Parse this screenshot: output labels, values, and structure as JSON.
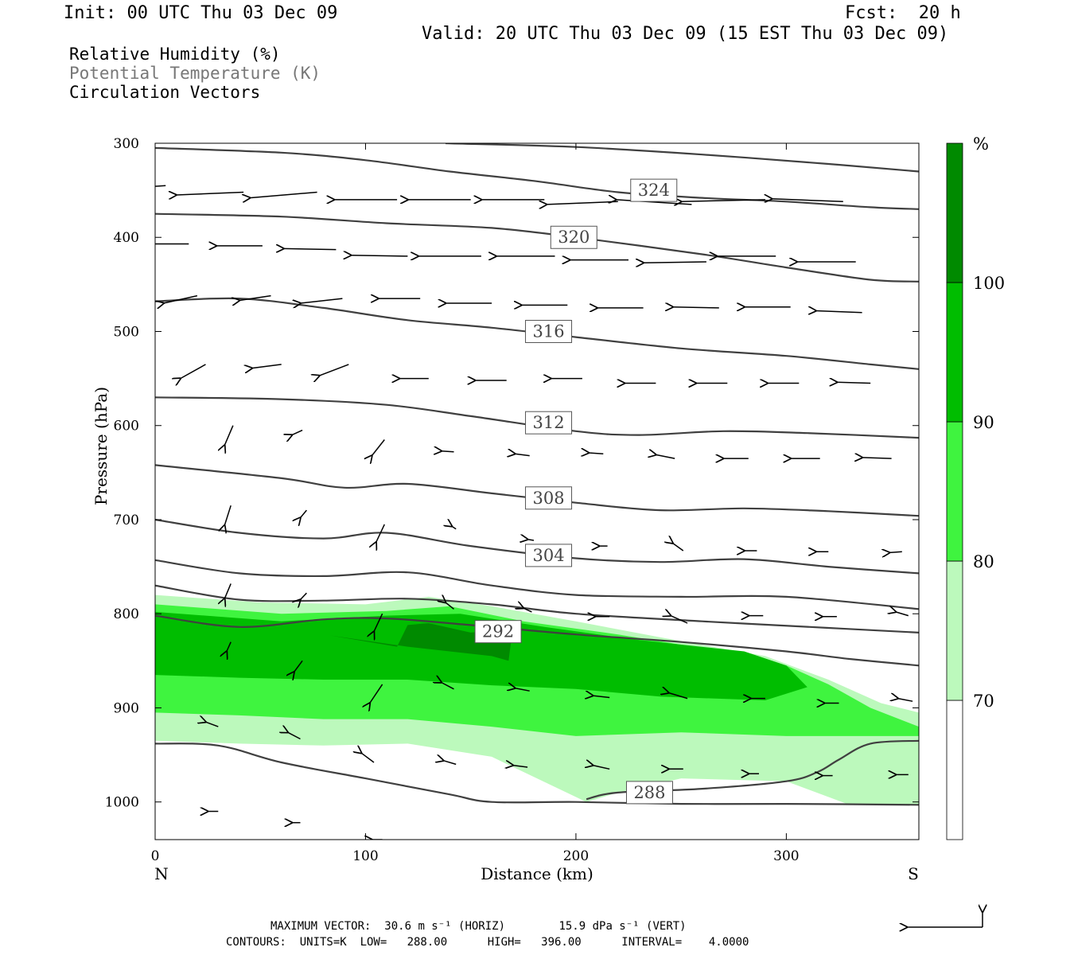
{
  "header": {
    "init": "Init: 00 UTC Thu 03 Dec 09",
    "fcst": "Fcst:  20 h",
    "valid": "Valid: 20 UTC Thu 03 Dec 09 (15 EST Thu 03 Dec 09)"
  },
  "legend_fields": [
    "Relative Humidity (%)",
    "Potential Temperature (K)",
    "Circulation Vectors"
  ],
  "footer": {
    "max_vector_label": "MAXIMUM VECTOR:",
    "max_vector_horiz": "30.6 m s⁻¹ (HORIZ)",
    "max_vector_vert": "15.9 dPa s⁻¹ (VERT)",
    "contours": "CONTOURS:  UNITS=K  LOW=   288.00      HIGH=   396.00      INTERVAL=    4.0000"
  },
  "colors": {
    "rh_70_80": "#bcf9bc",
    "rh_80_90": "#3ff43f",
    "rh_90_100": "#00bd00",
    "rh_100": "#008a00",
    "theta_line": "#404040",
    "vector": "#000000"
  },
  "chart_data": {
    "type": "cross-section",
    "xlabel": "Distance (km)",
    "ylabel": "Pressure (hPa)",
    "x_range": [
      0,
      363
    ],
    "y_range": [
      300,
      1040
    ],
    "y_reversed": true,
    "x_ticks": [
      0,
      100,
      200,
      300
    ],
    "y_ticks": [
      300,
      400,
      500,
      600,
      700,
      800,
      900,
      1000
    ],
    "end_labels": {
      "left": "N",
      "right": "S"
    },
    "colorbar": {
      "unit": "%",
      "levels": [
        70,
        80,
        90,
        100
      ],
      "colors": [
        "#ffffff",
        "#bcf9bc",
        "#3ff43f",
        "#00bd00",
        "#008a00"
      ]
    },
    "rh_filled_regions": [
      {
        "min": 70,
        "points": [
          [
            0,
            780
          ],
          [
            50,
            788
          ],
          [
            100,
            790
          ],
          [
            130,
            782
          ],
          [
            160,
            792
          ],
          [
            200,
            808
          ],
          [
            240,
            825
          ],
          [
            290,
            845
          ],
          [
            320,
            870
          ],
          [
            345,
            895
          ],
          [
            363,
            905
          ],
          [
            363,
            1003
          ],
          [
            330,
            1003
          ],
          [
            300,
            978
          ],
          [
            250,
            975
          ],
          [
            220,
            990
          ],
          [
            205,
            1000
          ],
          [
            160,
            952
          ],
          [
            120,
            938
          ],
          [
            80,
            940
          ],
          [
            40,
            938
          ],
          [
            0,
            935
          ]
        ]
      },
      {
        "min": 80,
        "points": [
          [
            0,
            790
          ],
          [
            60,
            800
          ],
          [
            110,
            797
          ],
          [
            140,
            792
          ],
          [
            175,
            808
          ],
          [
            220,
            822
          ],
          [
            270,
            840
          ],
          [
            300,
            855
          ],
          [
            320,
            875
          ],
          [
            340,
            900
          ],
          [
            363,
            920
          ],
          [
            363,
            930
          ],
          [
            300,
            930
          ],
          [
            250,
            926
          ],
          [
            200,
            930
          ],
          [
            160,
            920
          ],
          [
            120,
            912
          ],
          [
            80,
            912
          ],
          [
            40,
            908
          ],
          [
            0,
            905
          ]
        ]
      },
      {
        "min": 90,
        "points": [
          [
            0,
            798
          ],
          [
            60,
            808
          ],
          [
            110,
            802
          ],
          [
            145,
            800
          ],
          [
            185,
            814
          ],
          [
            230,
            828
          ],
          [
            280,
            840
          ],
          [
            300,
            855
          ],
          [
            310,
            878
          ],
          [
            290,
            892
          ],
          [
            240,
            888
          ],
          [
            200,
            880
          ],
          [
            160,
            876
          ],
          [
            120,
            870
          ],
          [
            80,
            870
          ],
          [
            40,
            868
          ],
          [
            0,
            865
          ]
        ]
      },
      {
        "min": 100,
        "points": [
          [
            83,
            823
          ],
          [
            120,
            835
          ],
          [
            160,
            845
          ],
          [
            168,
            850
          ],
          [
            170,
            815
          ],
          [
            150,
            820
          ],
          [
            130,
            810
          ],
          [
            120,
            812
          ],
          [
            115,
            835
          ]
        ]
      }
    ],
    "theta_contours": [
      {
        "level": 324,
        "label_at": [
          237,
          350
        ],
        "points": [
          [
            0,
            305
          ],
          [
            60,
            310
          ],
          [
            100,
            318
          ],
          [
            140,
            330
          ],
          [
            180,
            340
          ],
          [
            220,
            352
          ],
          [
            260,
            358
          ],
          [
            300,
            362
          ],
          [
            340,
            368
          ],
          [
            363,
            370
          ]
        ]
      },
      {
        "level": null,
        "points": [
          [
            138,
            300
          ],
          [
            200,
            304
          ],
          [
            260,
            312
          ],
          [
            320,
            322
          ],
          [
            363,
            330
          ]
        ]
      },
      {
        "level": 320,
        "label_at": [
          199,
          400
        ],
        "points": [
          [
            0,
            375
          ],
          [
            60,
            378
          ],
          [
            110,
            385
          ],
          [
            160,
            390
          ],
          [
            200,
            400
          ],
          [
            260,
            418
          ],
          [
            300,
            432
          ],
          [
            340,
            445
          ],
          [
            363,
            447
          ]
        ]
      },
      {
        "level": 316,
        "label_at": [
          187,
          500
        ],
        "points": [
          [
            0,
            468
          ],
          [
            40,
            465
          ],
          [
            80,
            475
          ],
          [
            120,
            488
          ],
          [
            160,
            496
          ],
          [
            200,
            506
          ],
          [
            250,
            518
          ],
          [
            300,
            526
          ],
          [
            340,
            535
          ],
          [
            363,
            540
          ]
        ]
      },
      {
        "level": 312,
        "label_at": [
          187,
          597
        ],
        "points": [
          [
            0,
            570
          ],
          [
            60,
            572
          ],
          [
            110,
            578
          ],
          [
            150,
            590
          ],
          [
            200,
            606
          ],
          [
            230,
            610
          ],
          [
            270,
            606
          ],
          [
            310,
            608
          ],
          [
            363,
            613
          ]
        ]
      },
      {
        "level": 308,
        "label_at": [
          187,
          677
        ],
        "points": [
          [
            0,
            642
          ],
          [
            60,
            656
          ],
          [
            90,
            666
          ],
          [
            120,
            662
          ],
          [
            160,
            672
          ],
          [
            200,
            682
          ],
          [
            240,
            690
          ],
          [
            280,
            688
          ],
          [
            320,
            691
          ],
          [
            363,
            696
          ]
        ]
      },
      {
        "level": 304,
        "label_at": [
          187,
          738
        ],
        "points": [
          [
            0,
            700
          ],
          [
            40,
            714
          ],
          [
            80,
            720
          ],
          [
            110,
            714
          ],
          [
            150,
            728
          ],
          [
            200,
            741
          ],
          [
            240,
            745
          ],
          [
            280,
            742
          ],
          [
            320,
            750
          ],
          [
            363,
            757
          ]
        ]
      },
      {
        "level": null,
        "points": [
          [
            0,
            743
          ],
          [
            40,
            757
          ],
          [
            80,
            760
          ],
          [
            120,
            756
          ],
          [
            160,
            770
          ],
          [
            200,
            780
          ],
          [
            250,
            782
          ],
          [
            300,
            782
          ],
          [
            363,
            795
          ]
        ]
      },
      {
        "level": null,
        "points": [
          [
            0,
            770
          ],
          [
            40,
            785
          ],
          [
            80,
            786
          ],
          [
            120,
            784
          ],
          [
            160,
            790
          ],
          [
            200,
            800
          ],
          [
            260,
            808
          ],
          [
            320,
            815
          ],
          [
            363,
            820
          ]
        ]
      },
      {
        "level": 292,
        "label_at": [
          163,
          819
        ],
        "points": [
          [
            0,
            802
          ],
          [
            40,
            814
          ],
          [
            80,
            806
          ],
          [
            110,
            805
          ],
          [
            150,
            812
          ],
          [
            200,
            822
          ],
          [
            250,
            830
          ],
          [
            300,
            840
          ],
          [
            330,
            848
          ],
          [
            363,
            855
          ]
        ]
      },
      {
        "level": 288,
        "label_at": [
          235,
          990
        ],
        "points": [
          [
            0,
            938
          ],
          [
            30,
            940
          ],
          [
            60,
            958
          ],
          [
            100,
            975
          ],
          [
            140,
            992
          ],
          [
            160,
            1000
          ],
          [
            200,
            1000
          ],
          [
            250,
            1002
          ],
          [
            300,
            1002
          ],
          [
            363,
            1003
          ]
        ]
      },
      {
        "level": 288,
        "points": [
          [
            205,
            997
          ],
          [
            220,
            990
          ],
          [
            260,
            986
          ],
          [
            300,
            978
          ],
          [
            315,
            968
          ],
          [
            325,
            955
          ],
          [
            340,
            938
          ],
          [
            363,
            935
          ]
        ]
      }
    ],
    "circulation_vectors": [
      [
        5,
        345,
        34,
        5
      ],
      [
        42,
        352,
        32,
        3
      ],
      [
        77,
        352,
        32,
        6
      ],
      [
        115,
        360,
        30,
        0
      ],
      [
        150,
        360,
        30,
        0
      ],
      [
        185,
        360,
        30,
        0
      ],
      [
        220,
        362,
        34,
        3
      ],
      [
        255,
        365,
        36,
        -5
      ],
      [
        290,
        360,
        40,
        2
      ],
      [
        327,
        362,
        34,
        -3
      ],
      [
        16,
        407,
        20,
        0
      ],
      [
        51,
        409,
        22,
        0
      ],
      [
        86,
        413,
        25,
        -1
      ],
      [
        120,
        420,
        27,
        -1
      ],
      [
        155,
        420,
        30,
        0
      ],
      [
        190,
        420,
        28,
        0
      ],
      [
        225,
        424,
        28,
        0
      ],
      [
        262,
        426,
        30,
        1
      ],
      [
        295,
        420,
        28,
        0
      ],
      [
        333,
        426,
        28,
        0
      ],
      [
        20,
        462,
        16,
        8
      ],
      [
        55,
        462,
        15,
        5
      ],
      [
        89,
        465,
        20,
        5
      ],
      [
        126,
        465,
        20,
        0
      ],
      [
        160,
        470,
        22,
        0
      ],
      [
        196,
        472,
        22,
        0
      ],
      [
        232,
        475,
        22,
        0
      ],
      [
        268,
        475,
        22,
        -1
      ],
      [
        302,
        474,
        22,
        0
      ],
      [
        336,
        480,
        22,
        -2
      ],
      [
        24,
        535,
        12,
        15
      ],
      [
        60,
        535,
        14,
        4
      ],
      [
        92,
        535,
        14,
        12
      ],
      [
        130,
        550,
        14,
        0
      ],
      [
        167,
        552,
        15,
        0
      ],
      [
        203,
        550,
        15,
        0
      ],
      [
        238,
        555,
        15,
        0
      ],
      [
        272,
        555,
        15,
        0
      ],
      [
        306,
        555,
        15,
        0
      ],
      [
        340,
        555,
        16,
        -1
      ],
      [
        37,
        600,
        4,
        21
      ],
      [
        70,
        605,
        5,
        5
      ],
      [
        109,
        615,
        6,
        17
      ],
      [
        142,
        628,
        6,
        -1
      ],
      [
        178,
        632,
        7,
        -2
      ],
      [
        213,
        630,
        7,
        -1
      ],
      [
        247,
        635,
        9,
        -4
      ],
      [
        282,
        635,
        12,
        0
      ],
      [
        316,
        635,
        14,
        0
      ],
      [
        350,
        635,
        14,
        -1
      ],
      [
        36,
        685,
        3,
        21
      ],
      [
        72,
        690,
        3,
        8
      ],
      [
        109,
        705,
        4,
        19
      ],
      [
        143,
        710,
        2,
        -3
      ],
      [
        180,
        722,
        3,
        -1
      ],
      [
        215,
        728,
        4,
        0
      ],
      [
        251,
        733,
        5,
        -8
      ],
      [
        286,
        733,
        6,
        0
      ],
      [
        320,
        734,
        6,
        0
      ],
      [
        355,
        734,
        6,
        1
      ],
      [
        36,
        768,
        3,
        16
      ],
      [
        72,
        778,
        3,
        7
      ],
      [
        108,
        800,
        4,
        19
      ],
      [
        142,
        795,
        4,
        -7
      ],
      [
        179,
        798,
        4,
        -4
      ],
      [
        216,
        803,
        7,
        0
      ],
      [
        253,
        810,
        8,
        -8
      ],
      [
        289,
        802,
        7,
        0
      ],
      [
        324,
        803,
        7,
        0
      ],
      [
        358,
        802,
        6,
        -4
      ],
      [
        36,
        830,
        2,
        10
      ],
      [
        70,
        850,
        4,
        12
      ],
      [
        108,
        875,
        6,
        20
      ],
      [
        142,
        880,
        6,
        -7
      ],
      [
        178,
        882,
        7,
        -3
      ],
      [
        216,
        889,
        8,
        -2
      ],
      [
        253,
        890,
        9,
        -6
      ],
      [
        290,
        890,
        7,
        0
      ],
      [
        325,
        895,
        7,
        0
      ],
      [
        360,
        893,
        7,
        -3
      ],
      [
        30,
        920,
        6,
        -5
      ],
      [
        69,
        933,
        6,
        -7
      ],
      [
        104,
        958,
        6,
        -10
      ],
      [
        143,
        960,
        6,
        -4
      ],
      [
        177,
        963,
        7,
        -2
      ],
      [
        216,
        965,
        8,
        -4
      ],
      [
        251,
        965,
        7,
        0
      ],
      [
        287,
        970,
        5,
        0
      ],
      [
        322,
        972,
        5,
        0
      ],
      [
        358,
        971,
        6,
        0
      ],
      [
        30,
        1010,
        5,
        0
      ],
      [
        69,
        1022,
        4,
        0
      ],
      [
        108,
        1040,
        5,
        0
      ],
      [
        143,
        1050,
        4,
        0
      ],
      [
        176,
        1052,
        4,
        0
      ],
      [
        216,
        1053,
        4,
        0
      ],
      [
        251,
        1053,
        4,
        0
      ],
      [
        287,
        1055,
        4,
        0
      ],
      [
        322,
        1055,
        4,
        0
      ],
      [
        358,
        1055,
        5,
        0
      ]
    ]
  }
}
